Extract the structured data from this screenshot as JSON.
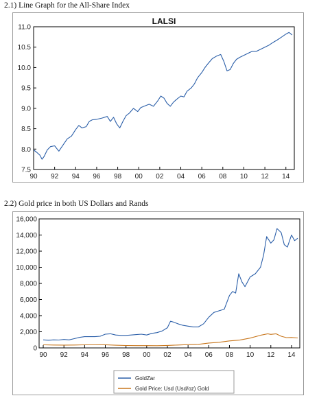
{
  "headings": {
    "section1": "2.1) Line Graph for the All-Share Index",
    "section2": "2.2) Gold price in both US Dollars and Rands"
  },
  "chart_data": [
    {
      "type": "line",
      "title": "LALSI",
      "xlabel": "",
      "ylabel": "",
      "xlim": [
        1990,
        2014.8
      ],
      "ylim": [
        7.5,
        11.0
      ],
      "x_ticks": [
        "90",
        "92",
        "94",
        "96",
        "98",
        "00",
        "02",
        "04",
        "06",
        "08",
        "10",
        "12",
        "14"
      ],
      "y_ticks": [
        "7.5",
        "8.0",
        "8.5",
        "9.0",
        "9.5",
        "10.0",
        "10.5",
        "11.0"
      ],
      "grid": false,
      "colors": {
        "line": "#2a5ea8"
      },
      "series": [
        {
          "name": "",
          "x": [
            1990.0,
            1990.3,
            1990.6,
            1990.8,
            1991.0,
            1991.3,
            1991.6,
            1992.0,
            1992.4,
            1992.8,
            1993.2,
            1993.6,
            1994.0,
            1994.3,
            1994.6,
            1995.0,
            1995.3,
            1995.6,
            1996.0,
            1996.5,
            1997.0,
            1997.3,
            1997.6,
            1997.9,
            1998.2,
            1998.5,
            1998.8,
            1999.1,
            1999.5,
            1999.9,
            2000.2,
            2000.6,
            2001.0,
            2001.4,
            2001.8,
            2002.1,
            2002.4,
            2002.7,
            2003.0,
            2003.3,
            2003.6,
            2004.0,
            2004.3,
            2004.6,
            2005.0,
            2005.3,
            2005.6,
            2006.0,
            2006.3,
            2006.6,
            2007.0,
            2007.4,
            2007.8,
            2008.1,
            2008.4,
            2008.7,
            2009.0,
            2009.3,
            2009.6,
            2010.0,
            2010.4,
            2010.8,
            2011.2,
            2011.6,
            2012.0,
            2012.4,
            2012.8,
            2013.2,
            2013.6,
            2014.0,
            2014.3,
            2014.6
          ],
          "y": [
            7.98,
            7.92,
            7.85,
            7.75,
            7.82,
            7.98,
            8.06,
            8.08,
            7.95,
            8.1,
            8.25,
            8.32,
            8.48,
            8.58,
            8.52,
            8.55,
            8.68,
            8.72,
            8.73,
            8.76,
            8.8,
            8.68,
            8.78,
            8.62,
            8.52,
            8.68,
            8.82,
            8.88,
            9.0,
            8.92,
            9.02,
            9.06,
            9.1,
            9.05,
            9.18,
            9.3,
            9.25,
            9.12,
            9.05,
            9.15,
            9.22,
            9.3,
            9.28,
            9.42,
            9.5,
            9.6,
            9.75,
            9.88,
            10.0,
            10.1,
            10.22,
            10.28,
            10.32,
            10.15,
            9.92,
            9.95,
            10.1,
            10.2,
            10.25,
            10.3,
            10.35,
            10.4,
            10.4,
            10.45,
            10.5,
            10.55,
            10.62,
            10.68,
            10.75,
            10.82,
            10.86,
            10.8
          ]
        }
      ]
    },
    {
      "type": "line",
      "title": "",
      "xlabel": "",
      "ylabel": "",
      "xlim": [
        1989.6,
        2014.8
      ],
      "ylim": [
        0,
        16000
      ],
      "x_ticks": [
        "90",
        "92",
        "94",
        "96",
        "98",
        "00",
        "02",
        "04",
        "06",
        "08",
        "10",
        "12",
        "14"
      ],
      "y_ticks": [
        "0",
        "2,000",
        "4,000",
        "6,000",
        "8,000",
        "10,000",
        "12,000",
        "14,000",
        "16,000"
      ],
      "grid": false,
      "legend_position": "bottom-center",
      "series": [
        {
          "name": "GoldZar",
          "color": "#2a5ea8",
          "x": [
            1990.0,
            1990.5,
            1991.0,
            1991.5,
            1992.0,
            1992.5,
            1993.0,
            1993.5,
            1994.0,
            1995.0,
            1995.5,
            1996.0,
            1996.5,
            1997.0,
            1997.5,
            1998.0,
            1998.5,
            1999.0,
            1999.5,
            2000.0,
            2000.5,
            2001.0,
            2001.5,
            2002.0,
            2002.3,
            2002.6,
            2003.0,
            2003.5,
            2004.0,
            2004.5,
            2005.0,
            2005.5,
            2006.0,
            2006.5,
            2007.0,
            2007.5,
            2008.0,
            2008.3,
            2008.6,
            2008.9,
            2009.2,
            2009.5,
            2010.0,
            2010.5,
            2011.0,
            2011.3,
            2011.6,
            2012.0,
            2012.3,
            2012.6,
            2013.0,
            2013.3,
            2013.6,
            2014.0,
            2014.3,
            2014.6
          ],
          "y": [
            1000,
            950,
            1000,
            980,
            1050,
            1000,
            1150,
            1300,
            1400,
            1400,
            1450,
            1700,
            1750,
            1600,
            1550,
            1550,
            1600,
            1650,
            1700,
            1600,
            1800,
            1900,
            2100,
            2500,
            3300,
            3200,
            3000,
            2800,
            2700,
            2600,
            2600,
            3000,
            3800,
            4400,
            4600,
            4800,
            6500,
            7000,
            6800,
            9200,
            8200,
            7600,
            8800,
            9200,
            10000,
            11500,
            13800,
            13000,
            13400,
            14800,
            14300,
            12800,
            12500,
            14000,
            13300,
            13600
          ]
        },
        {
          "name": "Gold Price: Usd (Usd/oz) Gold",
          "color": "#c8761c",
          "x": [
            1990.0,
            1991.0,
            1992.0,
            1993.0,
            1994.0,
            1995.0,
            1996.0,
            1997.0,
            1998.0,
            1999.0,
            2000.0,
            2001.0,
            2002.0,
            2003.0,
            2004.0,
            2005.0,
            2006.0,
            2007.0,
            2008.0,
            2009.0,
            2010.0,
            2011.0,
            2011.7,
            2012.0,
            2012.5,
            2013.0,
            2013.5,
            2014.0,
            2014.6
          ],
          "y": [
            380,
            360,
            345,
            360,
            385,
            385,
            390,
            330,
            295,
            280,
            280,
            270,
            310,
            360,
            410,
            440,
            600,
            700,
            870,
            970,
            1220,
            1570,
            1750,
            1680,
            1750,
            1450,
            1280,
            1290,
            1230
          ]
        }
      ]
    }
  ]
}
